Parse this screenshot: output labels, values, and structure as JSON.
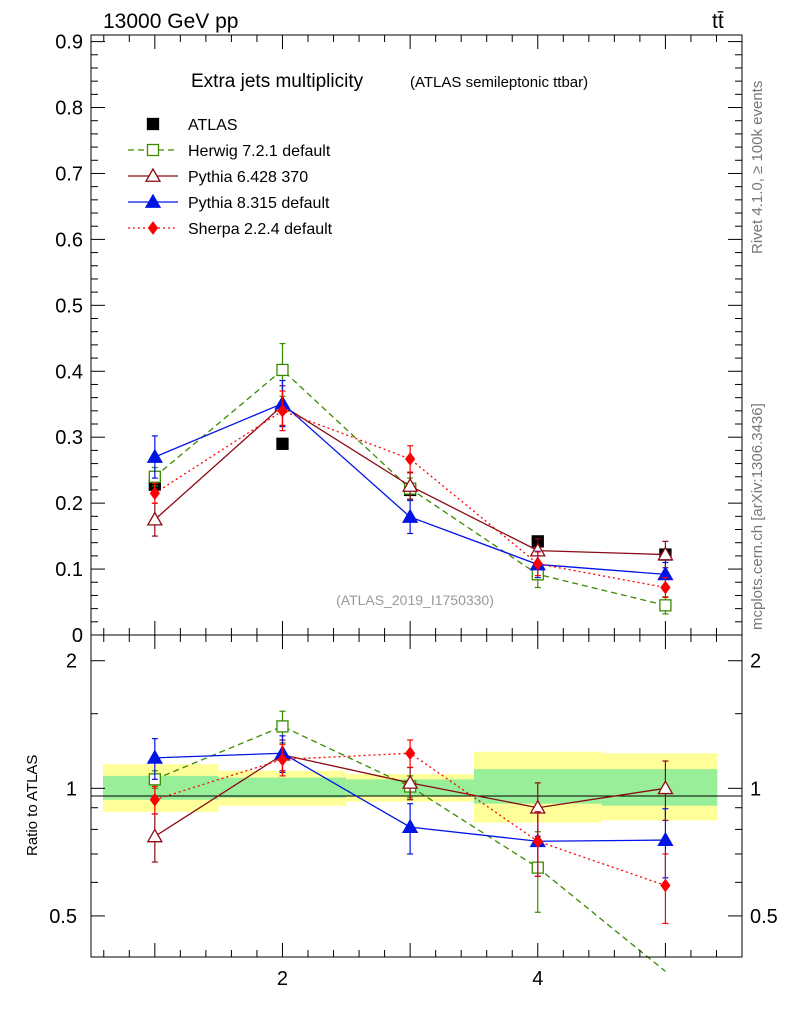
{
  "header": {
    "energy_label": "13000 GeV pp",
    "process_label": "tt̄"
  },
  "side_text": {
    "rivet": "Rivet 4.1.0, ≥ 100k events",
    "site": "mcplots.cern.ch [arXiv:1306.3436]"
  },
  "chart_data": [
    {
      "type": "line",
      "panel": "main",
      "title": "Extra jets multiplicity",
      "subtitle": "(ATLAS semileptonic ttbar)",
      "watermark": "(ATLAS_2019_I1750330)",
      "xlabel": "",
      "ylabel": "",
      "xlim": [
        0.5,
        5.6
      ],
      "ylim": [
        0,
        0.91
      ],
      "yticks": [
        0,
        0.1,
        0.2,
        0.3,
        0.4,
        0.5,
        0.6,
        0.7,
        0.8,
        0.9
      ],
      "ytick_labels": [
        "0",
        "0.1",
        "0.2",
        "0.3",
        "0.4",
        "0.5",
        "0.6",
        "0.7",
        "0.8",
        "0.9"
      ],
      "x": [
        1,
        2,
        3,
        4,
        5
      ],
      "series": [
        {
          "name": "ATLAS",
          "color": "#000000",
          "marker": "square-filled",
          "line": "none",
          "values": [
            0.228,
            0.29,
            0.22,
            0.142,
            0.122
          ],
          "errors": [
            0,
            0,
            0,
            0,
            0
          ]
        },
        {
          "name": "Herwig 7.2.1 default",
          "color": "#3a8a00",
          "marker": "square-open",
          "line": "dashed",
          "values": [
            0.24,
            0.402,
            0.222,
            0.092,
            0.045
          ],
          "errors": [
            0.014,
            0.04,
            0.016,
            0.02,
            0.013
          ]
        },
        {
          "name": "Pythia 6.428 370",
          "color": "#8b0a14",
          "marker": "triangle-open",
          "line": "solid",
          "values": [
            0.175,
            0.348,
            0.226,
            0.128,
            0.122
          ],
          "errors": [
            0.025,
            0.03,
            0.02,
            0.018,
            0.02
          ]
        },
        {
          "name": "Pythia 8.315 default",
          "color": "#0014e6",
          "marker": "triangle-filled",
          "line": "solid",
          "values": [
            0.27,
            0.351,
            0.179,
            0.107,
            0.092
          ],
          "errors": [
            0.032,
            0.035,
            0.025,
            0.02,
            0.018
          ]
        },
        {
          "name": "Sherpa 2.2.4 default",
          "color": "#ff0000",
          "marker": "diamond-filled",
          "line": "dotted",
          "values": [
            0.215,
            0.34,
            0.267,
            0.108,
            0.072
          ],
          "errors": [
            0.015,
            0.03,
            0.02,
            0.018,
            0.015
          ]
        }
      ]
    },
    {
      "type": "line",
      "panel": "ratio",
      "ylabel": "Ratio to ATLAS",
      "xlim": [
        0.5,
        5.6
      ],
      "ylim": [
        0.4,
        2.3
      ],
      "ylog": true,
      "xticks": [
        2,
        4
      ],
      "xtick_labels": [
        "2",
        "4"
      ],
      "yticks": [
        0.5,
        1,
        2
      ],
      "ytick_labels": [
        "0.5",
        "1",
        "2"
      ],
      "bands": [
        {
          "xlo": 0.5,
          "xhi": 1.5,
          "inner": [
            0.94,
            1.07
          ],
          "outer": [
            0.88,
            1.14
          ]
        },
        {
          "xlo": 1.5,
          "xhi": 2.5,
          "inner": [
            0.95,
            1.06
          ],
          "outer": [
            0.91,
            1.1
          ]
        },
        {
          "xlo": 2.5,
          "xhi": 3.5,
          "inner": [
            0.96,
            1.05
          ],
          "outer": [
            0.93,
            1.08
          ]
        },
        {
          "xlo": 3.5,
          "xhi": 4.5,
          "inner": [
            0.92,
            1.11
          ],
          "outer": [
            0.83,
            1.22
          ]
        },
        {
          "xlo": 4.5,
          "xhi": 5.5,
          "inner": [
            0.91,
            1.11
          ],
          "outer": [
            0.84,
            1.21
          ]
        }
      ],
      "x": [
        1,
        2,
        3,
        4,
        5
      ],
      "series": [
        {
          "name": "Herwig 7.2.1 default",
          "color": "#3a8a00",
          "marker": "square-open",
          "line": "dashed",
          "values": [
            1.05,
            1.4,
            1.01,
            0.65,
            0.37
          ],
          "errors": [
            0.05,
            0.12,
            0.06,
            0.14,
            0.0
          ]
        },
        {
          "name": "Pythia 6.428 370",
          "color": "#8b0a14",
          "marker": "triangle-open",
          "line": "solid",
          "values": [
            0.77,
            1.2,
            1.03,
            0.9,
            1.0
          ],
          "errors": [
            0.1,
            0.1,
            0.09,
            0.13,
            0.16
          ]
        },
        {
          "name": "Pythia 8.315 default",
          "color": "#0014e6",
          "marker": "triangle-filled",
          "line": "solid",
          "values": [
            1.18,
            1.21,
            0.81,
            0.75,
            0.755
          ],
          "errors": [
            0.13,
            0.12,
            0.11,
            0.13,
            0.14
          ]
        },
        {
          "name": "Sherpa 2.2.4 default",
          "color": "#ff0000",
          "marker": "diamond-filled",
          "line": "dotted",
          "values": [
            0.94,
            1.17,
            1.21,
            0.75,
            0.59
          ],
          "errors": [
            0.07,
            0.1,
            0.09,
            0.13,
            0.11
          ]
        }
      ]
    }
  ]
}
